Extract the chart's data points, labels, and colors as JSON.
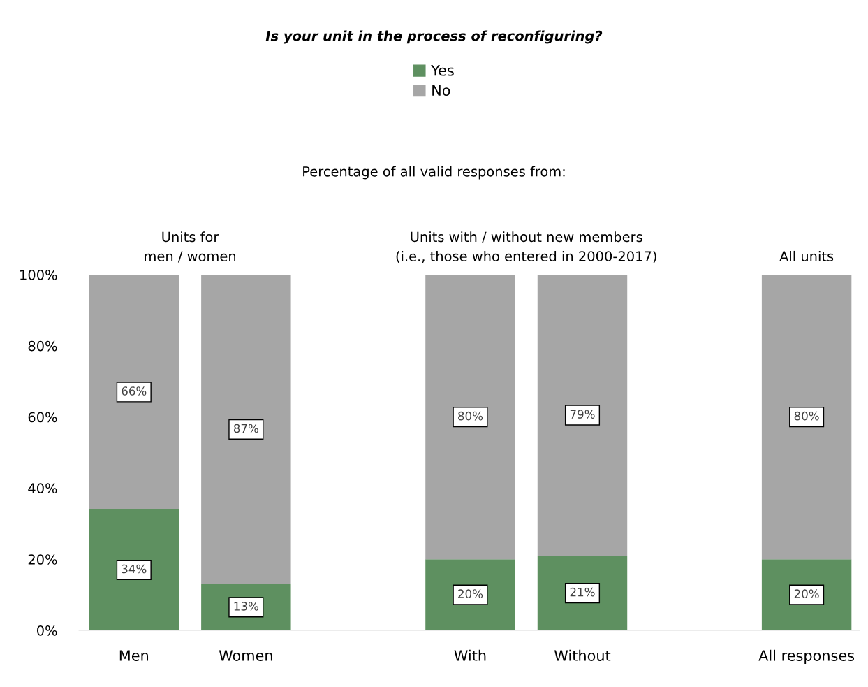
{
  "chart_data": {
    "type": "bar",
    "stacked": true,
    "title": "Is your unit in the process of reconfiguring?",
    "subtitle": "Percentage of all valid responses from:",
    "annotations": [
      "Units for\nmen / women",
      "Units with / without new members\n(i.e., those who entered in 2000-2017)",
      "All units"
    ],
    "categories": [
      "Men",
      "Women",
      null,
      "With",
      "Without",
      null,
      "All responses"
    ],
    "series": [
      {
        "name": "Yes",
        "color": "#5e9060",
        "values": [
          34,
          13,
          null,
          20,
          21,
          null,
          20
        ],
        "value_labels": [
          "34%",
          "13%",
          null,
          "20%",
          "21%",
          null,
          "20%"
        ]
      },
      {
        "name": "No",
        "color": "#a6a6a6",
        "values": [
          66,
          87,
          null,
          80,
          79,
          null,
          80
        ],
        "value_labels": [
          "66%",
          "87%",
          null,
          "80%",
          "79%",
          null,
          "80%"
        ]
      }
    ],
    "ylim": [
      0,
      100
    ],
    "yticks": [
      {
        "value": 0,
        "label": "0%"
      },
      {
        "value": 20,
        "label": "20%"
      },
      {
        "value": 40,
        "label": "40%"
      },
      {
        "value": 60,
        "label": "60%"
      },
      {
        "value": 80,
        "label": "80%"
      },
      {
        "value": 100,
        "label": "100%"
      }
    ],
    "grid": false,
    "legend": "top"
  }
}
